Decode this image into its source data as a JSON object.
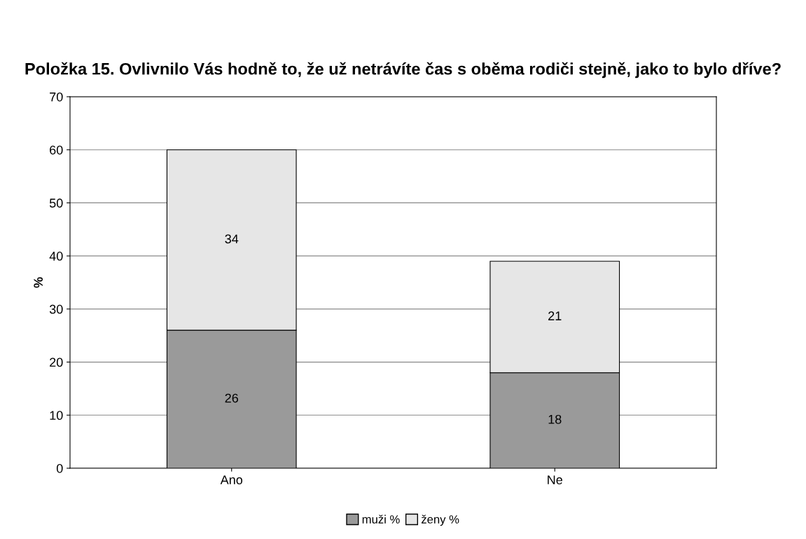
{
  "chart_data": {
    "type": "bar",
    "title": "Položka 15. Ovlivnilo Vás hodně to, že už netrávíte čas s oběma rodiči stejně, jako to bylo dříve?",
    "ylabel": "%",
    "categories": [
      "Ano",
      "Ne"
    ],
    "stacked": true,
    "series": [
      {
        "name": "muži %",
        "color": "#9a9a9a",
        "values": [
          26,
          18
        ]
      },
      {
        "name": "ženy %",
        "color": "#e6e6e6",
        "values": [
          34,
          21
        ]
      }
    ],
    "ylim": [
      0,
      70
    ],
    "yticks": [
      0,
      10,
      20,
      30,
      40,
      50,
      60,
      70
    ],
    "grid": "y",
    "legend": "bottom",
    "data_labels": true
  }
}
